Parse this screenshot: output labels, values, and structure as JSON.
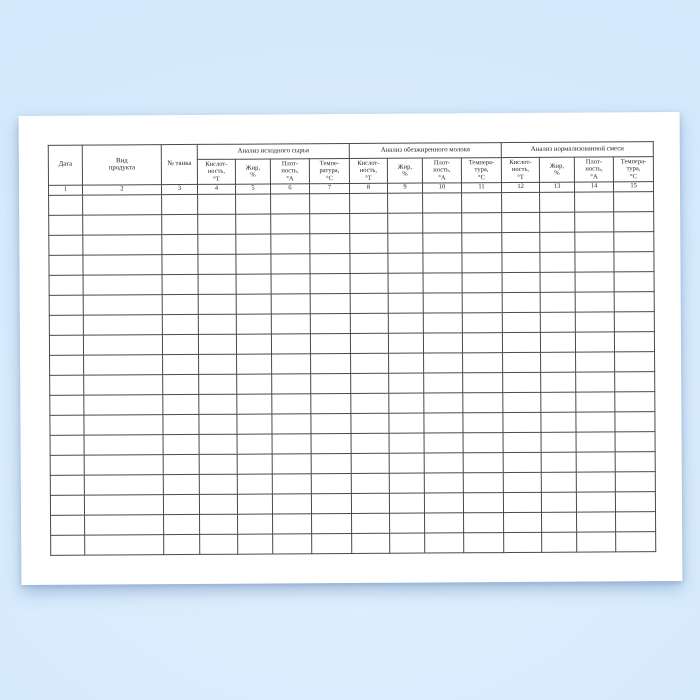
{
  "theme": {
    "background_blue": "#d7ebfd",
    "paper_color": "#ffffff",
    "grid_line_color": "#4a4a4a",
    "text_color": "#1f1f1f"
  },
  "table": {
    "column_count": 15,
    "data_row_count": 18,
    "main_columns": [
      {
        "label": "Дата",
        "number": "1"
      },
      {
        "label": "Вид\nпродукта",
        "number": "2"
      },
      {
        "label": "№ танка",
        "number": "3"
      }
    ],
    "groups": [
      {
        "title": "Анализ исходного сырья",
        "columns": [
          {
            "label": "Кислот-\nность,\n°Т",
            "number": "4"
          },
          {
            "label": "Жир,\n%",
            "number": "5"
          },
          {
            "label": "Плот-\nность,\n°А",
            "number": "6"
          },
          {
            "label": "Темпе-\nратура,\n°С",
            "number": "7"
          }
        ]
      },
      {
        "title": "Анализ обезжиренного молока",
        "columns": [
          {
            "label": "Кислот-\nность,\n°Т",
            "number": "8"
          },
          {
            "label": "Жир,\n%",
            "number": "9"
          },
          {
            "label": "Плот-\nность,\n°А",
            "number": "10"
          },
          {
            "label": "Темпера-\nтура,\n°С",
            "number": "11"
          }
        ]
      },
      {
        "title": "Анализ нормализованной смеси",
        "columns": [
          {
            "label": "Кислот-\nность,\n°Т",
            "number": "12"
          },
          {
            "label": "Жир,\n%",
            "number": "13"
          },
          {
            "label": "Плот-\nность,\n°А",
            "number": "14"
          },
          {
            "label": "Темпера-\nтура,\n°С",
            "number": "15"
          }
        ]
      }
    ]
  }
}
